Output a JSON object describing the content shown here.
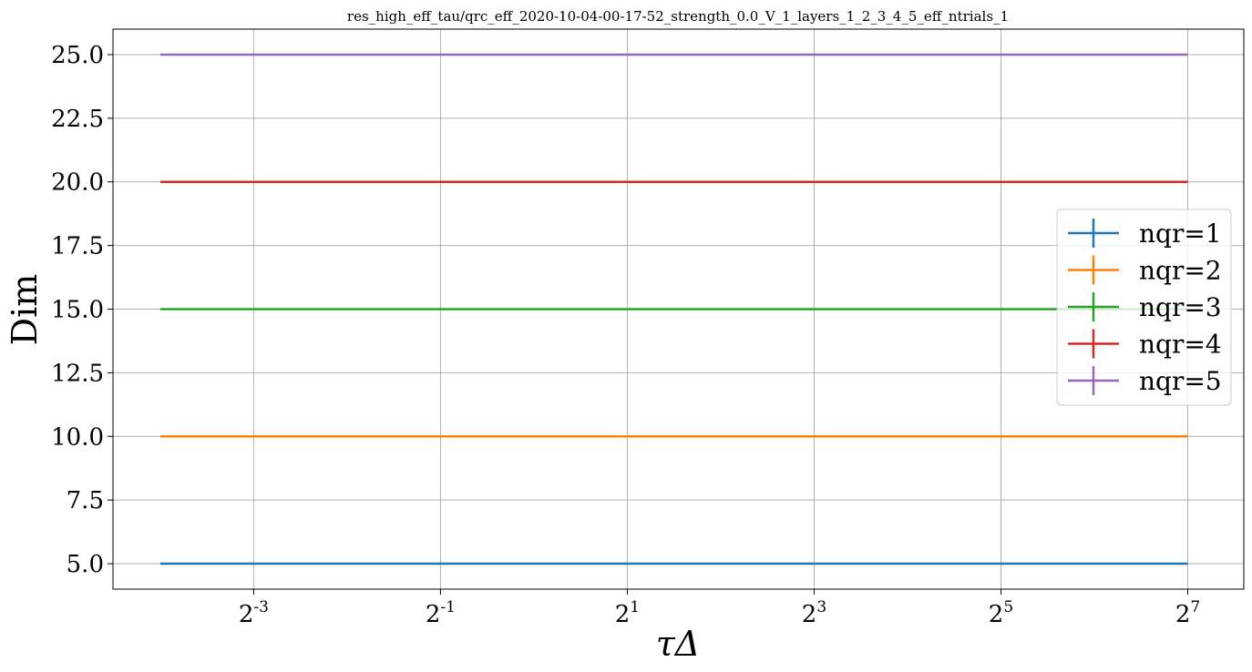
{
  "chart_data": {
    "type": "line",
    "title": "res_high_eff_tau/qrc_eff_2020-10-04-00-17-52_strength_0.0_V_1_layers_1_2_3_4_5_eff_ntrials_1",
    "xlabel": "τΔ",
    "ylabel": "Dim",
    "x_scale": "log2",
    "x_domain": [
      0.044,
      194
    ],
    "x": [
      0.0625,
      0.125,
      0.25,
      0.5,
      1,
      2,
      4,
      8,
      16,
      32,
      64,
      128
    ],
    "x_ticks": [
      {
        "value": 0.125,
        "base": "2",
        "exp": "-3"
      },
      {
        "value": 0.5,
        "base": "2",
        "exp": "-1"
      },
      {
        "value": 2,
        "base": "2",
        "exp": "1"
      },
      {
        "value": 8,
        "base": "2",
        "exp": "3"
      },
      {
        "value": 32,
        "base": "2",
        "exp": "5"
      },
      {
        "value": 128,
        "base": "2",
        "exp": "7"
      }
    ],
    "ylim": [
      4.0,
      26.0
    ],
    "y_ticks": [
      {
        "value": 5.0,
        "label": "5.0"
      },
      {
        "value": 7.5,
        "label": "7.5"
      },
      {
        "value": 10.0,
        "label": "10.0"
      },
      {
        "value": 12.5,
        "label": "12.5"
      },
      {
        "value": 15.0,
        "label": "15.0"
      },
      {
        "value": 17.5,
        "label": "17.5"
      },
      {
        "value": 20.0,
        "label": "20.0"
      },
      {
        "value": 22.5,
        "label": "22.5"
      },
      {
        "value": 25.0,
        "label": "25.0"
      }
    ],
    "grid": true,
    "legend_position": "right",
    "series": [
      {
        "name": "nqr=1",
        "color": "#1f77b4",
        "values": [
          5,
          5,
          5,
          5,
          5,
          5,
          5,
          5,
          5,
          5,
          5,
          5
        ]
      },
      {
        "name": "nqr=2",
        "color": "#ff7f0e",
        "values": [
          10,
          10,
          10,
          10,
          10,
          10,
          10,
          10,
          10,
          10,
          10,
          10
        ]
      },
      {
        "name": "nqr=3",
        "color": "#2ca02c",
        "values": [
          15,
          15,
          15,
          15,
          15,
          15,
          15,
          15,
          15,
          15,
          15,
          15
        ]
      },
      {
        "name": "nqr=4",
        "color": "#d62728",
        "values": [
          20,
          20,
          20,
          20,
          20,
          20,
          20,
          20,
          20,
          20,
          20,
          20
        ]
      },
      {
        "name": "nqr=5",
        "color": "#9467bd",
        "values": [
          25,
          25,
          25,
          25,
          25,
          25,
          25,
          25,
          25,
          25,
          25,
          25
        ]
      }
    ]
  }
}
